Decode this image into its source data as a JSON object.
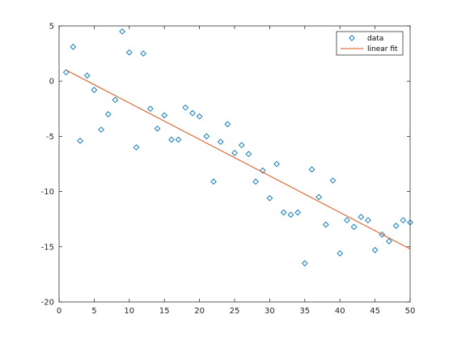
{
  "chart_data": {
    "type": "scatter",
    "title": "",
    "xlabel": "",
    "ylabel": "",
    "xlim": [
      0,
      50
    ],
    "ylim": [
      -20,
      5
    ],
    "xticks": [
      0,
      5,
      10,
      15,
      20,
      25,
      30,
      35,
      40,
      45,
      50
    ],
    "yticks": [
      -20,
      -15,
      -10,
      -5,
      0,
      5
    ],
    "xtick_labels": [
      "0",
      "5",
      "10",
      "15",
      "20",
      "25",
      "30",
      "35",
      "40",
      "45",
      "50"
    ],
    "ytick_labels": [
      "-20",
      "-15",
      "-10",
      "-5",
      "0",
      "5"
    ],
    "grid": false,
    "legend_position": "top-right",
    "series": [
      {
        "name": "data",
        "kind": "scatter",
        "marker": "diamond",
        "color": "#0072BD",
        "x": [
          1,
          2,
          3,
          4,
          5,
          6,
          7,
          8,
          9,
          10,
          11,
          12,
          13,
          14,
          15,
          16,
          17,
          18,
          19,
          20,
          21,
          22,
          23,
          24,
          25,
          26,
          27,
          28,
          29,
          30,
          31,
          32,
          33,
          34,
          35,
          36,
          37,
          38,
          39,
          40,
          41,
          42,
          43,
          44,
          45,
          46,
          47,
          48,
          49,
          50
        ],
        "y": [
          0.8,
          3.1,
          -5.4,
          0.5,
          -0.8,
          -4.4,
          -3.0,
          -1.7,
          4.5,
          2.6,
          -6.0,
          2.5,
          -2.5,
          -4.3,
          -3.1,
          -5.3,
          -5.3,
          -2.4,
          -2.9,
          -3.2,
          -5.0,
          -9.1,
          -5.5,
          -3.9,
          -6.5,
          -5.8,
          -6.6,
          -9.1,
          -8.1,
          -10.6,
          -7.5,
          -11.9,
          -12.1,
          -11.9,
          -16.5,
          -8.0,
          -10.5,
          -13.0,
          -9.0,
          -15.6,
          -12.6,
          -13.2,
          -12.3,
          -12.6,
          -15.3,
          -13.9,
          -14.5,
          -13.1,
          -12.6,
          -12.8
        ]
      },
      {
        "name": "linear fit",
        "kind": "line",
        "color": "#D95319",
        "x": [
          1,
          50
        ],
        "y": [
          1.0,
          -15.2
        ]
      }
    ]
  }
}
